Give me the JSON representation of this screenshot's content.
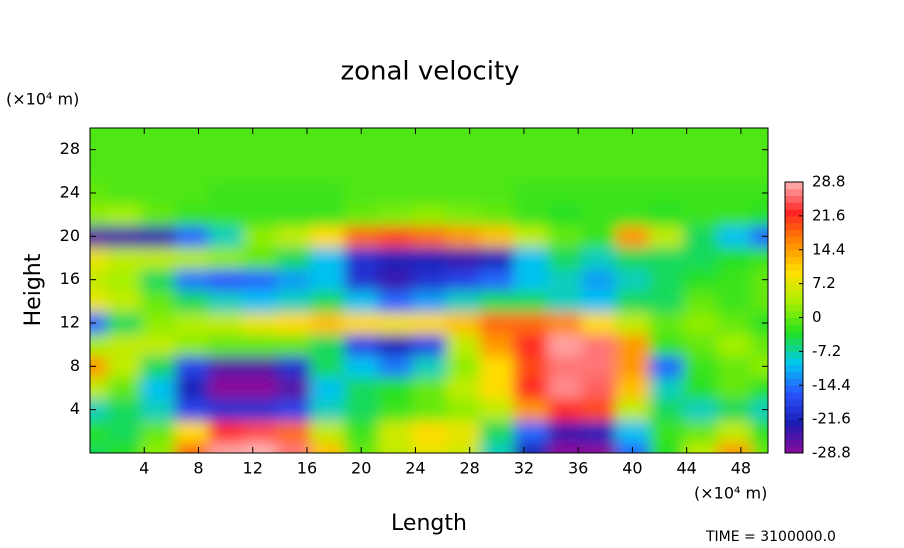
{
  "chart_data": {
    "type": "contour",
    "title": "zonal velocity",
    "xlabel": "Length",
    "ylabel": "Height",
    "x_unit": "(×10⁴ m)",
    "y_unit": "(×10⁴ m)",
    "xlim": [
      0,
      50
    ],
    "ylim": [
      0,
      30
    ],
    "xticks": [
      4,
      8,
      12,
      16,
      20,
      24,
      28,
      32,
      36,
      40,
      44,
      48
    ],
    "yticks": [
      4,
      8,
      12,
      16,
      20,
      24,
      28
    ],
    "x": [
      0,
      2.5,
      5,
      7.5,
      10,
      12.5,
      15,
      17.5,
      20,
      22.5,
      25,
      27.5,
      30,
      32.5,
      35,
      37.5,
      40,
      42.5,
      45,
      47.5,
      50
    ],
    "y": [
      0,
      2,
      4,
      6,
      8,
      10,
      12,
      14,
      16,
      18,
      20,
      22,
      24,
      26,
      28,
      30
    ],
    "z": [
      [
        -5,
        -3,
        2,
        18,
        28,
        30,
        26,
        12,
        0,
        5,
        8,
        6,
        -8,
        -22,
        -30,
        -30,
        -15,
        -3,
        5,
        15,
        0
      ],
      [
        -3,
        -5,
        0,
        10,
        22,
        24,
        18,
        5,
        -2,
        6,
        10,
        8,
        -5,
        -15,
        -24,
        -22,
        -10,
        -2,
        0,
        5,
        -3
      ],
      [
        -8,
        -5,
        -8,
        -18,
        -20,
        -20,
        -18,
        -8,
        -5,
        -2,
        0,
        2,
        5,
        15,
        22,
        20,
        5,
        -5,
        -8,
        -5,
        -8
      ],
      [
        5,
        0,
        -10,
        -22,
        -30,
        -30,
        -26,
        -10,
        -5,
        -3,
        0,
        5,
        10,
        22,
        27,
        25,
        12,
        -8,
        -3,
        0,
        -3
      ],
      [
        15,
        5,
        -5,
        -18,
        -26,
        -26,
        -20,
        -5,
        -10,
        -14,
        -8,
        2,
        10,
        20,
        26,
        26,
        15,
        -15,
        -2,
        0,
        2
      ],
      [
        3,
        5,
        5,
        2,
        0,
        0,
        0,
        -5,
        -18,
        -22,
        -18,
        5,
        15,
        22,
        28,
        26,
        15,
        -2,
        0,
        3,
        0
      ],
      [
        -15,
        -5,
        2,
        4,
        5,
        8,
        10,
        12,
        10,
        9,
        10,
        12,
        18,
        18,
        16,
        10,
        5,
        0,
        2,
        0,
        -3
      ],
      [
        8,
        5,
        0,
        -5,
        -8,
        -10,
        -8,
        -5,
        -10,
        -15,
        -12,
        -8,
        -5,
        -5,
        -8,
        -10,
        -5,
        -5,
        0,
        -2,
        0
      ],
      [
        5,
        3,
        -5,
        -14,
        -16,
        -15,
        -12,
        -10,
        -20,
        -24,
        -20,
        -18,
        -15,
        -10,
        -8,
        -12,
        -8,
        -5,
        -3,
        -2,
        0
      ],
      [
        8,
        5,
        5,
        4,
        2,
        0,
        -5,
        -10,
        -20,
        -22,
        -22,
        -24,
        -22,
        -10,
        -5,
        -8,
        -5,
        -5,
        -5,
        -3,
        -2
      ],
      [
        -26,
        -25,
        -24,
        -15,
        -8,
        2,
        5,
        10,
        18,
        20,
        18,
        15,
        12,
        5,
        0,
        -2,
        15,
        5,
        -5,
        -10,
        -15
      ],
      [
        2,
        3,
        0,
        -2,
        -2,
        -2,
        -2,
        -2,
        0,
        1,
        2,
        1,
        0,
        -2,
        -3,
        -2,
        -2,
        -3,
        -2,
        -2,
        -3
      ],
      [
        0,
        -1,
        -1,
        -1,
        -2,
        -2,
        -2,
        -2,
        -1,
        -1,
        -1,
        -1,
        -1,
        -2,
        -2,
        -2,
        -2,
        -2,
        -2,
        -2,
        -2
      ],
      [
        -1,
        -1,
        -1,
        -1,
        -1,
        -1,
        -1,
        -1,
        -1,
        -1,
        -1,
        -1,
        -1,
        -1,
        -1,
        -1,
        -1,
        -1,
        -1,
        -1,
        -1
      ],
      [
        -1,
        -1,
        -1,
        -1,
        -1,
        -1,
        -1,
        -1,
        -1,
        -1,
        -1,
        -1,
        -1,
        -1,
        -1,
        -1,
        -1,
        -1,
        -1,
        -1,
        -1
      ],
      [
        -1,
        -1,
        -1,
        -1,
        -1,
        -1,
        -1,
        -1,
        -1,
        -1,
        -1,
        -1,
        -1,
        -1,
        -1,
        -1,
        -1,
        -1,
        -1,
        -1,
        -1
      ]
    ],
    "colorbar": {
      "lim": [
        -28.8,
        28.8
      ],
      "ticks": [
        28.8,
        21.6,
        14.4,
        7.2,
        0,
        -7.2,
        -14.4,
        -21.6,
        -28.8
      ],
      "colors": [
        "#8a0a9a",
        "#1c1cb4",
        "#2a55ff",
        "#00c8f0",
        "#22e022",
        "#a8f000",
        "#ffe000",
        "#ff8a00",
        "#ff2424",
        "#ffb4b4"
      ]
    },
    "time_label": "TIME = 3100000.0"
  }
}
